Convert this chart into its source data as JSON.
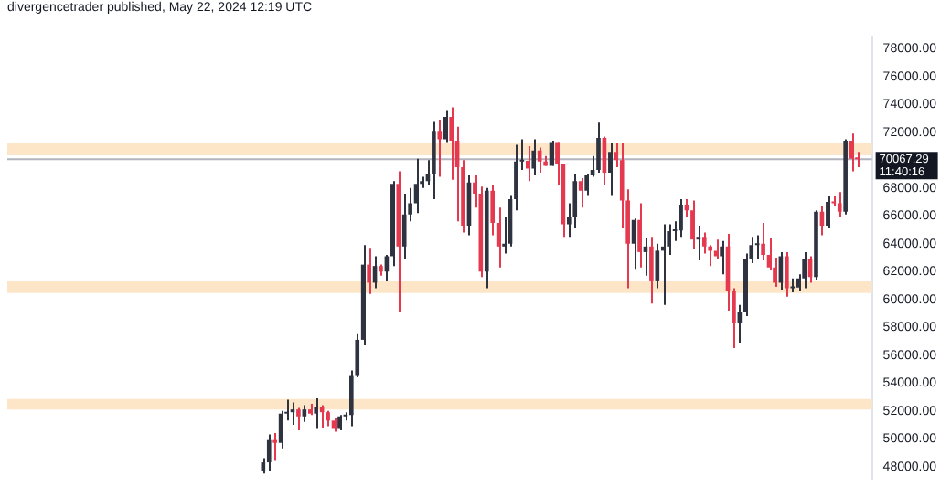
{
  "chart_data": {
    "type": "candlestick",
    "title": "divergencetrader published, May 22, 2024 12:19 UTC",
    "categories": [
      null,
      null,
      null,
      null,
      null,
      null,
      null,
      null,
      null,
      null,
      null,
      null,
      null,
      null,
      null,
      null,
      null,
      null,
      null,
      null,
      null,
      null,
      null,
      null,
      null,
      null,
      null,
      null,
      null,
      null,
      null,
      null,
      null,
      null,
      null,
      null,
      null,
      null,
      null,
      null,
      null,
      null,
      null,
      null,
      null,
      null,
      null,
      null,
      null,
      null,
      null,
      null,
      null,
      null,
      null,
      null,
      null,
      null,
      null,
      null,
      null,
      null,
      null,
      null,
      null,
      null,
      null,
      null,
      null,
      null,
      null,
      null,
      null,
      null,
      null,
      null,
      null,
      null,
      null,
      null,
      null,
      null,
      null,
      null,
      null,
      null,
      null,
      null,
      null,
      null,
      null,
      null,
      null,
      null,
      null,
      null,
      null,
      null,
      null,
      null,
      null,
      null,
      null,
      null,
      null,
      null,
      null,
      null,
      null,
      null,
      null,
      null,
      null,
      null,
      null,
      null,
      null,
      null,
      null,
      null,
      null,
      null,
      null,
      null,
      null,
      null,
      null,
      null,
      null,
      null,
      null,
      null,
      null,
      null,
      null,
      null,
      null,
      null,
      null,
      null,
      null,
      null,
      null,
      null,
      null,
      null,
      null
    ],
    "ohlc": [
      null,
      null,
      null,
      null,
      null,
      null,
      null,
      null,
      null,
      null,
      null,
      null,
      null,
      null,
      null,
      null,
      null,
      null,
      null,
      null,
      null,
      null,
      null,
      null,
      null,
      null,
      null,
      null,
      null,
      null,
      null,
      null,
      null,
      null,
      null,
      null,
      null,
      null,
      null,
      null,
      null,
      null,
      null,
      [
        47700,
        48600,
        47500,
        48300
      ],
      [
        48300,
        50300,
        47700,
        49900
      ],
      [
        49900,
        50400,
        48400,
        49700
      ],
      [
        49700,
        52000,
        49300,
        51800
      ],
      [
        51800,
        52800,
        51300,
        51900
      ],
      [
        51900,
        52600,
        51000,
        52100
      ],
      [
        52100,
        52200,
        50600,
        51600
      ],
      [
        51600,
        52400,
        51200,
        52100
      ],
      [
        52100,
        52500,
        51700,
        51800
      ],
      [
        51800,
        52900,
        50700,
        52300
      ],
      [
        52300,
        52400,
        50800,
        51900
      ],
      [
        51900,
        52000,
        50900,
        51300
      ],
      [
        51300,
        51500,
        50500,
        50700
      ],
      [
        50700,
        51700,
        50600,
        51600
      ],
      [
        51600,
        51900,
        51300,
        51700
      ],
      [
        51700,
        54900,
        50900,
        54500
      ],
      [
        54500,
        57500,
        54400,
        57100
      ],
      [
        57100,
        63900,
        56700,
        62500
      ],
      [
        62500,
        63700,
        60400,
        61200
      ],
      [
        61200,
        63100,
        60800,
        62400
      ],
      [
        62400,
        62500,
        61700,
        62000
      ],
      [
        62000,
        63200,
        61300,
        63100
      ],
      [
        63100,
        68500,
        62400,
        68300
      ],
      [
        68300,
        69200,
        59100,
        63800
      ],
      [
        63800,
        67600,
        62900,
        66100
      ],
      [
        66100,
        68000,
        65600,
        66900
      ],
      [
        66900,
        70100,
        66200,
        68300
      ],
      [
        68300,
        68800,
        68000,
        68500
      ],
      [
        68500,
        70000,
        68200,
        69000
      ],
      [
        69000,
        72800,
        67200,
        72100
      ],
      [
        72100,
        72900,
        68800,
        71500
      ],
      [
        71500,
        73600,
        71300,
        73100
      ],
      [
        73100,
        73800,
        68600,
        71400
      ],
      [
        71400,
        72400,
        65600,
        69500
      ],
      [
        69500,
        70000,
        64800,
        65300
      ],
      [
        65300,
        68900,
        64600,
        68400
      ],
      [
        68400,
        68900,
        66600,
        67600
      ],
      [
        67600,
        68100,
        61600,
        62000
      ],
      [
        62000,
        68000,
        60800,
        67800
      ],
      [
        67800,
        68200,
        64600,
        65500
      ],
      [
        65500,
        66600,
        62300,
        63800
      ],
      [
        63800,
        65900,
        63300,
        64000
      ],
      [
        64000,
        67500,
        63800,
        67200
      ],
      [
        67200,
        71100,
        66400,
        69900
      ],
      [
        69900,
        71500,
        69300,
        69950
      ],
      [
        69950,
        71000,
        68500,
        69400
      ],
      [
        69400,
        71500,
        68900,
        70700
      ],
      [
        70700,
        70900,
        69100,
        69900
      ],
      [
        69900,
        70300,
        69600,
        69600
      ],
      [
        69600,
        71400,
        69600,
        71300
      ],
      [
        71300,
        71300,
        68200,
        69700
      ],
      [
        69700,
        69700,
        64500,
        65400
      ],
      [
        65400,
        66900,
        64500,
        65900
      ],
      [
        65900,
        69000,
        65100,
        68500
      ],
      [
        68500,
        68700,
        66600,
        67800
      ],
      [
        67800,
        69000,
        67500,
        68900
      ],
      [
        68900,
        70300,
        68800,
        69300
      ],
      [
        69300,
        72700,
        69100,
        71600
      ],
      [
        71600,
        71700,
        68200,
        69100
      ],
      [
        69100,
        71200,
        67500,
        70600
      ],
      [
        70600,
        71200,
        69500,
        70000
      ],
      [
        70000,
        71200,
        65100,
        67100
      ],
      [
        67100,
        67900,
        60800,
        64000
      ],
      [
        64000,
        65800,
        62200,
        65700
      ],
      [
        65700,
        66900,
        62300,
        63400
      ],
      [
        63400,
        64400,
        61700,
        63800
      ],
      [
        63800,
        64500,
        59700,
        61300
      ],
      [
        61300,
        64000,
        60800,
        63500
      ],
      [
        63500,
        65400,
        59600,
        63800
      ],
      [
        63800,
        65400,
        63200,
        64900
      ],
      [
        64900,
        65600,
        64200,
        64950
      ],
      [
        64950,
        67200,
        64500,
        66800
      ],
      [
        66800,
        67200,
        65900,
        66400
      ],
      [
        66400,
        67100,
        63600,
        64300
      ],
      [
        64300,
        65300,
        62800,
        64500
      ],
      [
        64500,
        64800,
        63300,
        63800
      ],
      [
        63800,
        63900,
        62400,
        63500
      ],
      [
        63500,
        64300,
        62900,
        63100
      ],
      [
        63100,
        64200,
        61800,
        63800
      ],
      [
        63800,
        64700,
        59200,
        60600
      ],
      [
        60600,
        60800,
        56500,
        58300
      ],
      [
        58300,
        59600,
        56900,
        59100
      ],
      [
        59100,
        63300,
        58800,
        62900
      ],
      [
        62900,
        64500,
        62600,
        63900
      ],
      [
        63900,
        64600,
        62900,
        64000
      ],
      [
        64000,
        65500,
        62800,
        63200
      ],
      [
        63200,
        64400,
        62100,
        62300
      ],
      [
        62300,
        63000,
        60900,
        61200
      ],
      [
        61200,
        63400,
        60700,
        63100
      ],
      [
        63100,
        63400,
        60200,
        60800
      ],
      [
        60800,
        61500,
        60500,
        60850
      ],
      [
        60850,
        61800,
        60600,
        61500
      ],
      [
        61500,
        63400,
        60800,
        62900
      ],
      [
        62900,
        63100,
        61200,
        61600
      ],
      [
        61600,
        66400,
        61400,
        66300
      ],
      [
        66300,
        66700,
        64600,
        65300
      ],
      [
        65300,
        67400,
        65100,
        67000
      ],
      [
        67000,
        67400,
        66700,
        66900
      ],
      [
        66900,
        67700,
        65900,
        66300
      ],
      [
        66300,
        71500,
        66100,
        71400
      ],
      [
        71400,
        71900,
        69200,
        70100
      ],
      [
        70100,
        70600,
        69500,
        70067.29
      ],
      null,
      null
    ],
    "colors": [
      null,
      null,
      null,
      null,
      null,
      null,
      null,
      null,
      null,
      null,
      null,
      null,
      null,
      null,
      null,
      null,
      null,
      null,
      null,
      null,
      null,
      null,
      null,
      null,
      null,
      null,
      null,
      null,
      null,
      null,
      null,
      null,
      null,
      null,
      null,
      null,
      null,
      null,
      null,
      null,
      null,
      null,
      null,
      "#2f3340",
      "#2f3340",
      "#e53950",
      "#2f3340",
      "#2f3340",
      "#2f3340",
      "#e53950",
      "#2f3340",
      "#e53950",
      "#2f3340",
      "#e53950",
      "#e53950",
      "#e53950",
      "#2f3340",
      "#2f3340",
      "#2f3340",
      "#2f3340",
      "#2f3340",
      "#e53950",
      "#2f3340",
      "#e53950",
      "#2f3340",
      "#2f3340",
      "#e53950",
      "#2f3340",
      "#2f3340",
      "#2f3340",
      "#2f3340",
      "#2f3340",
      "#2f3340",
      "#e53950",
      "#2f3340",
      "#e53950",
      "#e53950",
      "#e53950",
      "#2f3340",
      "#e53950",
      "#e53950",
      "#2f3340",
      "#e53950",
      "#e53950",
      "#2f3340",
      "#2f3340",
      "#2f3340",
      "#2f3340",
      "#e53950",
      "#2f3340",
      "#e53950",
      "#e53950",
      "#2f3340",
      "#e53950",
      "#e53950",
      "#2f3340",
      "#2f3340",
      "#e53950",
      "#2f3340",
      "#2f3340",
      "#2f3340",
      "#e53950",
      "#2f3340",
      "#e53950",
      "#e53950",
      "#e53950",
      "#2f3340",
      "#e53950",
      "#2f3340",
      "#e53950",
      "#2f3340",
      "#2f3340",
      "#2f3340",
      "#2f3340",
      "#2f3340",
      "#e53950",
      "#e53950",
      "#2f3340",
      "#e53950",
      "#e53950",
      "#e53950",
      "#2f3340",
      "#e53950",
      "#e53950",
      "#2f3340",
      "#2f3340",
      "#2f3340",
      "#2f3340",
      "#e53950",
      "#e53950",
      "#e53950",
      "#2f3340",
      "#e53950",
      "#2f3340",
      "#2f3340",
      "#2f3340",
      "#e53950",
      "#2f3340",
      "#e53950",
      "#2f3340",
      "#e53950",
      "#e53950",
      "#2f3340",
      "#e53950",
      "#e53950",
      null,
      null
    ],
    "ylim": [
      47150,
      78850
    ],
    "yticks": [
      {
        "value": 48000,
        "label": "48000.00"
      },
      {
        "value": 50000,
        "label": "50000.00"
      },
      {
        "value": 52000,
        "label": "52000.00"
      },
      {
        "value": 54000,
        "label": "54000.00"
      },
      {
        "value": 56000,
        "label": "56000.00"
      },
      {
        "value": 58000,
        "label": "58000.00"
      },
      {
        "value": 60000,
        "label": "60000.00"
      },
      {
        "value": 62000,
        "label": "62000.00"
      },
      {
        "value": 64000,
        "label": "64000.00"
      },
      {
        "value": 66000,
        "label": "66000.00"
      },
      {
        "value": 68000,
        "label": "68000.00"
      },
      {
        "value": 70000,
        "label": null
      },
      {
        "value": 72000,
        "label": "72000.00"
      },
      {
        "value": 74000,
        "label": "74000.00"
      },
      {
        "value": 76000,
        "label": "76000.00"
      },
      {
        "value": 78000,
        "label": "78000.00"
      }
    ],
    "tick_labels": "y",
    "grid": false,
    "legend": false,
    "ref_lines": [
      {
        "axis": "y",
        "value": 70067.29,
        "label": "70067.29",
        "color": "#b2b5be"
      }
    ],
    "bands": [
      {
        "axis": "y",
        "from": 70350,
        "to": 71250,
        "color": "#fde6c8"
      },
      {
        "axis": "y",
        "from": 60450,
        "to": 61300,
        "color": "#fde6c8"
      },
      {
        "axis": "y",
        "from": 52100,
        "to": 52850,
        "color": "#fde6c8"
      }
    ],
    "annotations": [
      "11:40:16"
    ]
  }
}
